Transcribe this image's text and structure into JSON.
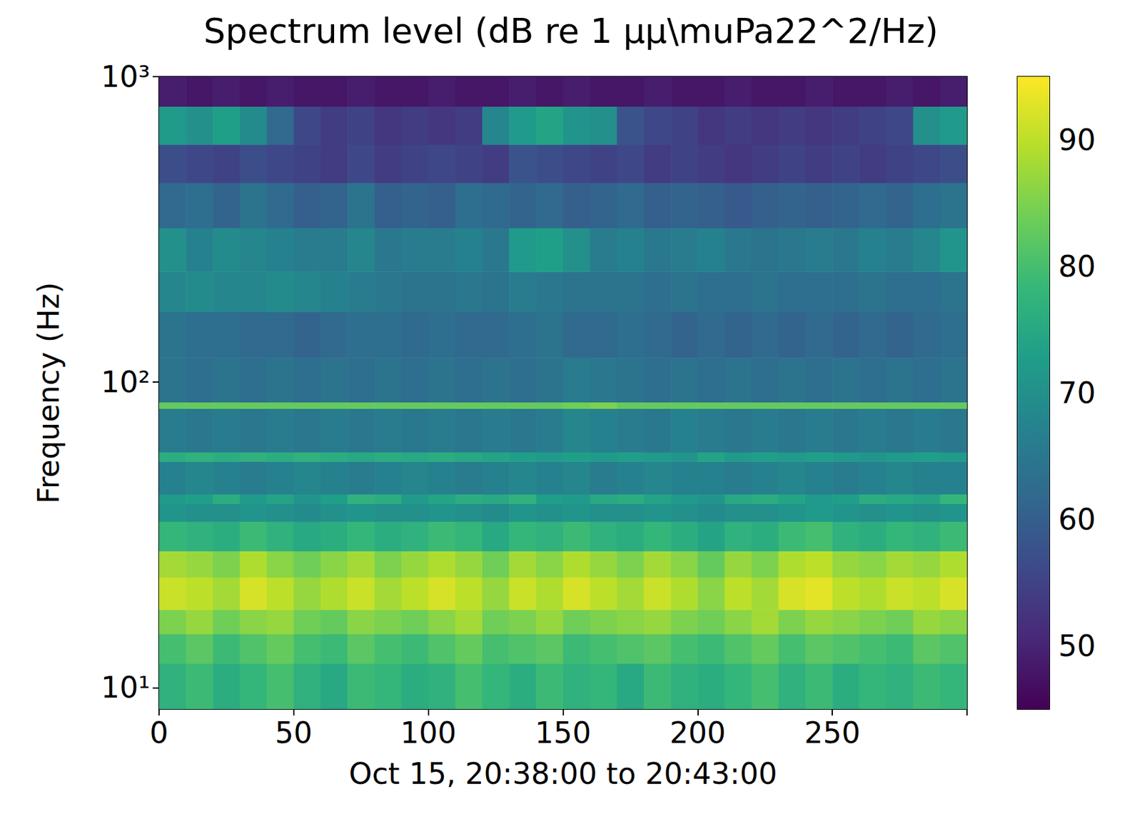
{
  "chart_data": {
    "type": "heatmap",
    "title": "Spectrum level (dB re 1 μμ\\muPa22^2/Hz)",
    "xlabel": "Oct 15, 20:38:00 to 20:43:00",
    "ylabel": "Frequency (Hz)",
    "log": "y",
    "grid": false,
    "xlim": [
      0,
      300
    ],
    "xticks": [
      0,
      50,
      100,
      150,
      200,
      250
    ],
    "ylim": [
      8.5,
      1000
    ],
    "yticks": [
      {
        "value": 10,
        "label": "10¹"
      },
      {
        "value": 100,
        "label": "10²"
      },
      {
        "value": 1000,
        "label": "10³"
      }
    ],
    "time_edges": [
      0,
      10,
      20,
      30,
      40,
      50,
      60,
      70,
      80,
      90,
      100,
      110,
      120,
      130,
      140,
      150,
      160,
      170,
      180,
      190,
      200,
      210,
      220,
      230,
      240,
      250,
      260,
      270,
      280,
      290,
      300
    ],
    "freq_edges": [
      8.5,
      12,
      15,
      18,
      23,
      28,
      35,
      40,
      43,
      55,
      59,
      82,
      86,
      120,
      170,
      230,
      320,
      450,
      600,
      800,
      1000
    ],
    "cells": [
      [
        77,
        79,
        76,
        78,
        80,
        77,
        75,
        79,
        78,
        76,
        77,
        80,
        78,
        76,
        79,
        77,
        78,
        75,
        79,
        77,
        76,
        78,
        80,
        77,
        79,
        76,
        78,
        77,
        79,
        78
      ],
      [
        80,
        82,
        79,
        81,
        83,
        80,
        79,
        82,
        80,
        79,
        81,
        83,
        80,
        81,
        82,
        79,
        80,
        81,
        82,
        80,
        79,
        81,
        83,
        80,
        82,
        81,
        80,
        79,
        82,
        81
      ],
      [
        85,
        87,
        84,
        86,
        87,
        84,
        83,
        86,
        85,
        84,
        86,
        88,
        84,
        85,
        87,
        84,
        85,
        86,
        87,
        85,
        84,
        86,
        88,
        85,
        87,
        86,
        85,
        84,
        87,
        86
      ],
      [
        91,
        90,
        88,
        92,
        90,
        87,
        89,
        91,
        88,
        90,
        92,
        90,
        87,
        91,
        89,
        92,
        90,
        88,
        91,
        89,
        86,
        90,
        88,
        92,
        93,
        90,
        89,
        91,
        90,
        92
      ],
      [
        88,
        87,
        85,
        89,
        86,
        84,
        86,
        88,
        85,
        87,
        89,
        87,
        84,
        88,
        86,
        89,
        87,
        85,
        88,
        86,
        83,
        87,
        85,
        89,
        90,
        87,
        86,
        88,
        87,
        89
      ],
      [
        78,
        77,
        76,
        79,
        77,
        75,
        76,
        78,
        76,
        77,
        79,
        78,
        75,
        78,
        77,
        79,
        77,
        76,
        78,
        76,
        74,
        77,
        76,
        79,
        80,
        77,
        76,
        78,
        77,
        79
      ],
      [
        71,
        70,
        70,
        71,
        70,
        69,
        70,
        71,
        70,
        70,
        71,
        70,
        69,
        71,
        70,
        71,
        70,
        70,
        71,
        70,
        69,
        70,
        70,
        71,
        72,
        71,
        70,
        71,
        70,
        71
      ],
      [
        72,
        73,
        76,
        72,
        74,
        71,
        73,
        77,
        76,
        72,
        74,
        76,
        75,
        77,
        73,
        72,
        75,
        76,
        74,
        72,
        71,
        75,
        76,
        74,
        72,
        73,
        76,
        75,
        74,
        78
      ],
      [
        67,
        68,
        67,
        66,
        67,
        68,
        67,
        66,
        67,
        68,
        67,
        66,
        67,
        68,
        67,
        68,
        66,
        67,
        68,
        67,
        67,
        66,
        67,
        68,
        67,
        66,
        67,
        68,
        67,
        67
      ],
      [
        76,
        77,
        76,
        77,
        76,
        77,
        76,
        75,
        76,
        75,
        76,
        75,
        74,
        73,
        72,
        73,
        72,
        73,
        72,
        71,
        74,
        72,
        73,
        72,
        73,
        72,
        71,
        72,
        73,
        72
      ],
      [
        66,
        65,
        66,
        65,
        66,
        65,
        66,
        65,
        66,
        65,
        66,
        65,
        66,
        65,
        66,
        68,
        67,
        66,
        65,
        67,
        66,
        65,
        66,
        65,
        66,
        65,
        66,
        65,
        66,
        65
      ],
      [
        83,
        83,
        83,
        83,
        83,
        83,
        83,
        83,
        83,
        83,
        83,
        83,
        83,
        83,
        83,
        84,
        85,
        83,
        83,
        83,
        83,
        83,
        83,
        83,
        83,
        83,
        83,
        83,
        83,
        83
      ],
      [
        64,
        63,
        64,
        63,
        64,
        63,
        64,
        63,
        64,
        63,
        64,
        63,
        64,
        63,
        64,
        66,
        65,
        64,
        63,
        64,
        63,
        64,
        63,
        64,
        63,
        64,
        63,
        64,
        63,
        64
      ],
      [
        64,
        63,
        63,
        62,
        62,
        61,
        62,
        63,
        63,
        62,
        63,
        62,
        62,
        63,
        64,
        62,
        62,
        63,
        62,
        61,
        62,
        61,
        62,
        61,
        62,
        61,
        62,
        61,
        62,
        63
      ],
      [
        68,
        69,
        68,
        68,
        69,
        68,
        67,
        66,
        65,
        64,
        64,
        65,
        64,
        66,
        65,
        64,
        64,
        64,
        63,
        64,
        63,
        63,
        64,
        63,
        63,
        63,
        64,
        63,
        63,
        64
      ],
      [
        70,
        67,
        69,
        68,
        67,
        66,
        66,
        68,
        65,
        66,
        66,
        67,
        65,
        72,
        73,
        70,
        66,
        67,
        65,
        66,
        67,
        65,
        64,
        65,
        66,
        65,
        67,
        66,
        68,
        71
      ],
      [
        62,
        63,
        61,
        64,
        62,
        60,
        61,
        64,
        60,
        61,
        60,
        63,
        62,
        61,
        62,
        60,
        61,
        62,
        60,
        61,
        60,
        59,
        60,
        61,
        60,
        61,
        62,
        61,
        63,
        64
      ],
      [
        57,
        56,
        55,
        57,
        56,
        55,
        54,
        56,
        54,
        55,
        56,
        55,
        54,
        58,
        57,
        56,
        55,
        56,
        54,
        55,
        54,
        53,
        54,
        55,
        54,
        55,
        54,
        55,
        56,
        57
      ],
      [
        72,
        70,
        73,
        69,
        62,
        56,
        54,
        55,
        53,
        54,
        53,
        54,
        68,
        72,
        74,
        71,
        70,
        58,
        56,
        55,
        53,
        54,
        53,
        54,
        53,
        54,
        55,
        56,
        70,
        72
      ],
      [
        49,
        48,
        49,
        48,
        49,
        48,
        48,
        49,
        48,
        48,
        49,
        48,
        48,
        49,
        48,
        49,
        48,
        48,
        49,
        48,
        48,
        49,
        48,
        48,
        49,
        48,
        48,
        49,
        48,
        49
      ]
    ],
    "colorbar": {
      "range": [
        45,
        95
      ],
      "ticks": [
        50,
        60,
        70,
        80,
        90
      ]
    }
  }
}
